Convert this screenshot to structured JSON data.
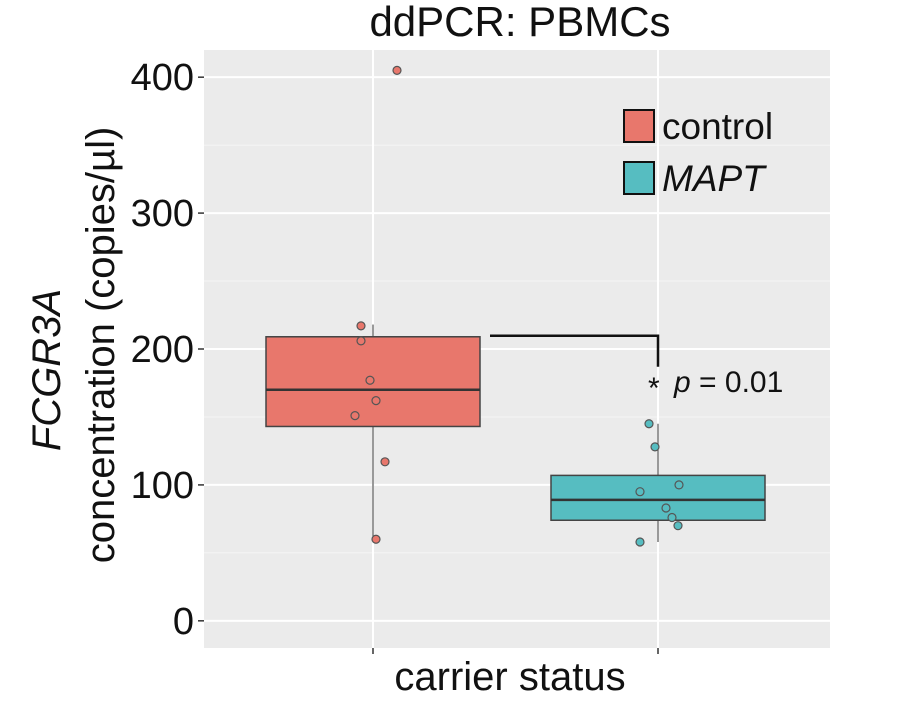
{
  "chart_data": {
    "type": "box",
    "title": "ddPCR: PBMCs",
    "xlabel": "carrier status",
    "ylabel_italic": "FCGR3A",
    "ylabel": "concentration (copies/µl)",
    "ylim": [
      -20,
      420
    ],
    "yticks": [
      0,
      100,
      200,
      300,
      400
    ],
    "grid": true,
    "legend_position": "top-right",
    "groups": [
      {
        "name": "control",
        "italic": false,
        "color": "#E8776C",
        "stats": {
          "q1": 143,
          "median": 170,
          "q3": 209,
          "whisker_low": 60,
          "whisker_high": 218
        },
        "points": [
          405,
          217,
          206,
          177,
          162,
          151,
          117,
          60
        ]
      },
      {
        "name": "MAPT",
        "italic": true,
        "color": "#56BDC1",
        "stats": {
          "q1": 74,
          "median": 89,
          "q3": 107,
          "whisker_low": 58,
          "whisker_high": 145
        },
        "points": [
          145,
          128,
          100,
          95,
          83,
          76,
          70,
          58
        ]
      }
    ],
    "annotation": {
      "star": "*",
      "p_symbol": "p",
      "p_text": "= 0.01",
      "bracket_y": 209
    }
  }
}
